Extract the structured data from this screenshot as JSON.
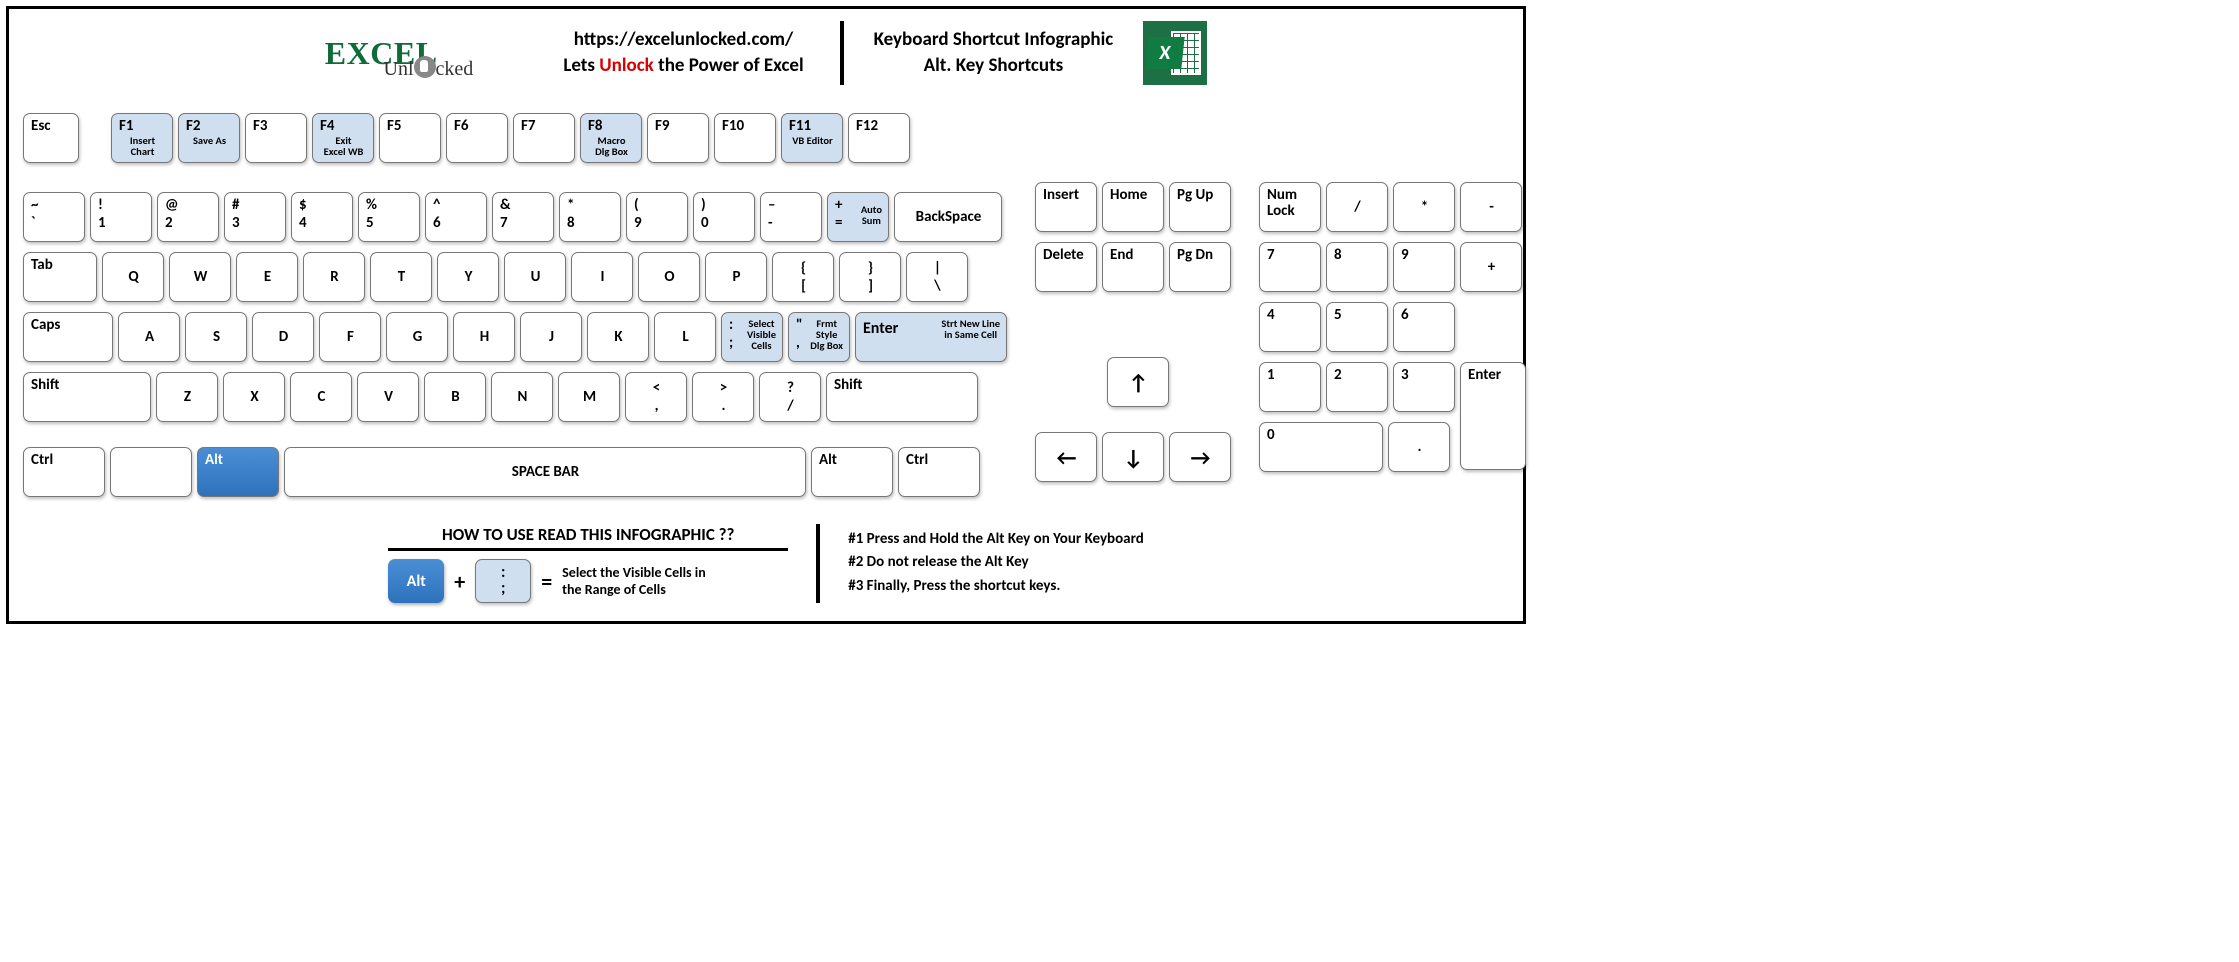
{
  "header": {
    "logo_main": "EXCEL",
    "logo_sub": "Unl   cked",
    "url": "https://excelunlocked.com/",
    "tagline_pre": "Lets ",
    "tagline_em": "Unlock",
    "tagline_post": " the Power of Excel",
    "title_line1": "Keyboard Shortcut Infographic",
    "title_line2": "Alt. Key Shortcuts"
  },
  "colors": {
    "highlight_bg": "#cfdff0",
    "alt_bg_top": "#4a8fd6",
    "alt_bg_bottom": "#2d72bb",
    "accent_red": "#d80000",
    "excel_green": "#1d7044"
  },
  "rowF": [
    {
      "label": "Esc",
      "w": "w1"
    },
    {
      "gap": 22
    },
    {
      "label": "F1",
      "w": "w12",
      "hl": true,
      "hint": "Insert\nChart"
    },
    {
      "label": "F2",
      "w": "w12",
      "hl": true,
      "hint": "Save As"
    },
    {
      "label": "F3",
      "w": "w12"
    },
    {
      "label": "F4",
      "w": "w12",
      "hl": true,
      "hint": "Exit\nExcel WB"
    },
    {
      "label": "F5",
      "w": "w12"
    },
    {
      "label": "F6",
      "w": "w12"
    },
    {
      "label": "F7",
      "w": "w12"
    },
    {
      "label": "F8",
      "w": "w12",
      "hl": true,
      "hint": "Macro\nDlg Box"
    },
    {
      "label": "F9",
      "w": "w12"
    },
    {
      "label": "F10",
      "w": "w12"
    },
    {
      "label": "F11",
      "w": "w12",
      "hl": true,
      "hint": "VB Editor"
    },
    {
      "label": "F12",
      "w": "w12"
    }
  ],
  "rowNum": [
    {
      "top": "~",
      "bot": "`",
      "w": "w12"
    },
    {
      "top": "!",
      "bot": "1",
      "w": "w12"
    },
    {
      "top": "@",
      "bot": "2",
      "w": "w12"
    },
    {
      "top": "#",
      "bot": "3",
      "w": "w12"
    },
    {
      "top": "$",
      "bot": "4",
      "w": "w12"
    },
    {
      "top": "%",
      "bot": "5",
      "w": "w12"
    },
    {
      "top": "^",
      "bot": "6",
      "w": "w12"
    },
    {
      "top": "&",
      "bot": "7",
      "w": "w12"
    },
    {
      "top": "*",
      "bot": "8",
      "w": "w12"
    },
    {
      "top": "(",
      "bot": "9",
      "w": "w12"
    },
    {
      "top": ")",
      "bot": "0",
      "w": "w12"
    },
    {
      "top": "–",
      "bot": "-",
      "w": "w12"
    },
    {
      "top": "+",
      "bot": "=",
      "w": "w12",
      "hl": true,
      "hint": "Auto\nSum"
    },
    {
      "label": "BackSpace",
      "w": "w21",
      "center": true
    }
  ],
  "rowQ": [
    {
      "label": "Tab",
      "w": "w15"
    },
    {
      "label": "Q",
      "w": "w12",
      "center": true
    },
    {
      "label": "W",
      "w": "w12",
      "center": true
    },
    {
      "label": "E",
      "w": "w12",
      "center": true
    },
    {
      "label": "R",
      "w": "w12",
      "center": true
    },
    {
      "label": "T",
      "w": "w12",
      "center": true
    },
    {
      "label": "Y",
      "w": "w12",
      "center": true
    },
    {
      "label": "U",
      "w": "w12",
      "center": true
    },
    {
      "label": "I",
      "w": "w12",
      "center": true
    },
    {
      "label": "O",
      "w": "w12",
      "center": true
    },
    {
      "label": "P",
      "w": "w12",
      "center": true
    },
    {
      "top": "{",
      "bot": "[",
      "w": "w12",
      "center": true
    },
    {
      "top": "}",
      "bot": "]",
      "w": "w12",
      "center": true
    },
    {
      "top": "|",
      "bot": "\\",
      "w": "w12",
      "center": true
    }
  ],
  "rowA": [
    {
      "label": "Caps",
      "w": "w19"
    },
    {
      "label": "A",
      "w": "w12",
      "center": true
    },
    {
      "label": "S",
      "w": "w12",
      "center": true
    },
    {
      "label": "D",
      "w": "w12",
      "center": true
    },
    {
      "label": "F",
      "w": "w12",
      "center": true
    },
    {
      "label": "G",
      "w": "w12",
      "center": true
    },
    {
      "label": "H",
      "w": "w12",
      "center": true
    },
    {
      "label": "J",
      "w": "w12",
      "center": true
    },
    {
      "label": "K",
      "w": "w12",
      "center": true
    },
    {
      "label": "L",
      "w": "w12",
      "center": true
    },
    {
      "top": ":",
      "bot": ";",
      "w": "w12",
      "hl": true,
      "hint": "Select\nVisible\nCells"
    },
    {
      "top": "\"",
      "bot": ",",
      "w": "w12",
      "hl": true,
      "hint": "Frmt\nStyle\nDlg Box"
    },
    {
      "label": "Enter",
      "w": "w3",
      "hl": true,
      "hint": "Strt New Line\nin Same Cell",
      "enter": true
    }
  ],
  "rowZ": [
    {
      "label": "Shift",
      "w": "w25"
    },
    {
      "label": "Z",
      "w": "w12",
      "center": true
    },
    {
      "label": "X",
      "w": "w12",
      "center": true
    },
    {
      "label": "C",
      "w": "w12",
      "center": true
    },
    {
      "label": "V",
      "w": "w12",
      "center": true
    },
    {
      "label": "B",
      "w": "w12",
      "center": true
    },
    {
      "label": "N",
      "w": "w12",
      "center": true
    },
    {
      "label": "M",
      "w": "w12",
      "center": true
    },
    {
      "top": "<",
      "bot": ",",
      "w": "w12",
      "center": true
    },
    {
      "top": ">",
      "bot": ".",
      "w": "w12",
      "center": true
    },
    {
      "top": "?",
      "bot": "/",
      "w": "w12",
      "center": true
    },
    {
      "label": "Shift",
      "w": "w3"
    }
  ],
  "rowCtrl": [
    {
      "label": "Ctrl",
      "w": "w17"
    },
    {
      "label": "",
      "w": "w17"
    },
    {
      "label": "Alt",
      "w": "w17",
      "alt": true
    },
    {
      "label": "SPACE BAR",
      "w": "wSpace",
      "center": true
    },
    {
      "label": "Alt",
      "w": "w17"
    },
    {
      "label": "Ctrl",
      "w": "w17"
    }
  ],
  "nav1": [
    {
      "label": "Insert",
      "w": "w12"
    },
    {
      "label": "Home",
      "w": "w12"
    },
    {
      "label": "Pg Up",
      "w": "w12"
    }
  ],
  "nav2": [
    {
      "label": "Delete",
      "w": "w12"
    },
    {
      "label": "End",
      "w": "w12"
    },
    {
      "label": "Pg Dn",
      "w": "w12"
    }
  ],
  "arrowUp": {
    "glyph": "↑"
  },
  "arrowRow": [
    {
      "glyph": "←"
    },
    {
      "glyph": "↓"
    },
    {
      "glyph": "→"
    }
  ],
  "numTop": [
    {
      "label": "Num\nLock",
      "w": "w12"
    },
    {
      "label": "/",
      "w": "w12",
      "center": true
    },
    {
      "label": "*",
      "w": "w12",
      "center": true
    },
    {
      "label": "-",
      "w": "w12",
      "center": true
    }
  ],
  "num789": [
    "7",
    "8",
    "9"
  ],
  "num456": [
    "4",
    "5",
    "6"
  ],
  "num123": [
    "1",
    "2",
    "3"
  ],
  "numPlus": "+",
  "numEnter": "Enter",
  "numZero": "0",
  "numDot": ".",
  "footer": {
    "howto_title": "HOW TO USE READ THIS INFOGRAPHIC ??",
    "legend_alt": "Alt",
    "legend_top": ":",
    "legend_bot": ";",
    "legend_caption": "Select the Visible Cells in\nthe Range of Cells",
    "step1": "#1 Press and Hold the Alt Key on Your Keyboard",
    "step2": "#2 Do not release the Alt Key",
    "step3": "#3 Finally, Press the shortcut keys."
  }
}
